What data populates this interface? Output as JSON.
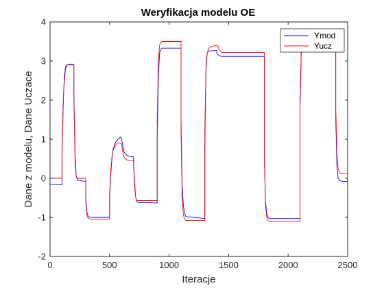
{
  "chart_data": {
    "type": "line",
    "title": "Weryfikacja modelu OE",
    "xlabel": "Iteracje",
    "ylabel": "Dane z modelu, Dane Uczace",
    "xlim": [
      0,
      2500
    ],
    "ylim": [
      -2,
      4
    ],
    "xticks": [
      "0",
      "500",
      "1000",
      "1500",
      "2000",
      "2500"
    ],
    "yticks": [
      "-2",
      "-1",
      "0",
      "1",
      "2",
      "3",
      "4"
    ],
    "grid": false,
    "legend_position": "top-right",
    "series": [
      {
        "name": "Ymod",
        "color": "#0000ff",
        "x": [
          0,
          100,
          100,
          110,
          120,
          130,
          140,
          200,
          200,
          210,
          220,
          230,
          300,
          300,
          310,
          320,
          330,
          340,
          500,
          500,
          510,
          520,
          530,
          550,
          570,
          590,
          600,
          610,
          620,
          640,
          660,
          680,
          700,
          710,
          720,
          730,
          740,
          900,
          900,
          910,
          920,
          930,
          940,
          1100,
          1100,
          1110,
          1120,
          1130,
          1140,
          1300,
          1300,
          1310,
          1320,
          1330,
          1340,
          1400,
          1400,
          1420,
          1440,
          1460,
          1500,
          1800,
          1800,
          1810,
          1820,
          1830,
          1840,
          2100,
          2100,
          2110,
          2120,
          2130,
          2140,
          2400,
          2400,
          2410,
          2420,
          2430,
          2440,
          2460,
          2500
        ],
        "y": [
          -0.15,
          -0.17,
          0.5,
          1.9,
          2.6,
          2.85,
          2.9,
          2.9,
          2.2,
          0.6,
          0.05,
          -0.05,
          -0.08,
          -0.5,
          -0.88,
          -0.97,
          -0.99,
          -1.0,
          -1.0,
          -0.5,
          0.1,
          0.5,
          0.75,
          0.92,
          1.0,
          1.05,
          1.02,
          0.85,
          0.68,
          0.6,
          0.57,
          0.55,
          0.55,
          -0.1,
          -0.5,
          -0.6,
          -0.62,
          -0.63,
          1.0,
          2.6,
          3.2,
          3.3,
          3.33,
          3.33,
          1.5,
          -0.2,
          -0.7,
          -0.9,
          -0.98,
          -1.03,
          0.8,
          2.8,
          3.2,
          3.25,
          3.26,
          3.27,
          3.2,
          3.14,
          3.12,
          3.12,
          3.12,
          3.12,
          0.5,
          -0.6,
          -0.9,
          -1.0,
          -1.03,
          -1.03,
          1.8,
          3.2,
          3.3,
          3.35,
          3.35,
          3.35,
          1.5,
          0.3,
          0.0,
          -0.05,
          -0.07,
          -0.08,
          -0.08
        ]
      },
      {
        "name": "Yucz",
        "color": "#ff0000",
        "x": [
          0,
          100,
          100,
          115,
          130,
          145,
          160,
          200,
          200,
          210,
          220,
          230,
          300,
          300,
          310,
          320,
          330,
          340,
          500,
          500,
          510,
          520,
          530,
          550,
          570,
          590,
          600,
          610,
          620,
          640,
          660,
          680,
          700,
          710,
          720,
          730,
          740,
          900,
          900,
          910,
          920,
          930,
          940,
          1100,
          1100,
          1110,
          1120,
          1130,
          1140,
          1300,
          1300,
          1310,
          1320,
          1330,
          1340,
          1370,
          1390,
          1400,
          1410,
          1420,
          1440,
          1500,
          1800,
          1800,
          1810,
          1820,
          1830,
          1840,
          2100,
          2100,
          2110,
          2120,
          2130,
          2140,
          2400,
          2400,
          2410,
          2420,
          2430,
          2440,
          2460,
          2500
        ],
        "y": [
          0.0,
          0.0,
          0.6,
          2.3,
          2.8,
          2.9,
          2.92,
          2.92,
          2.0,
          0.4,
          0.05,
          0.0,
          0.0,
          -0.6,
          -0.95,
          -1.02,
          -1.04,
          -1.05,
          -1.05,
          -0.4,
          0.2,
          0.55,
          0.72,
          0.85,
          0.9,
          0.9,
          0.88,
          0.7,
          0.55,
          0.48,
          0.46,
          0.45,
          0.45,
          -0.2,
          -0.5,
          -0.57,
          -0.57,
          -0.57,
          1.5,
          3.0,
          3.4,
          3.48,
          3.5,
          3.5,
          1.2,
          -0.5,
          -0.95,
          -1.05,
          -1.08,
          -1.08,
          1.2,
          2.9,
          3.2,
          3.3,
          3.35,
          3.38,
          3.4,
          3.4,
          3.38,
          3.3,
          3.22,
          3.22,
          3.22,
          0.5,
          -0.7,
          -1.0,
          -1.08,
          -1.1,
          -1.1,
          2.0,
          3.3,
          3.42,
          3.45,
          3.45,
          3.45,
          1.8,
          0.6,
          0.25,
          0.15,
          0.12,
          0.12,
          0.12
        ]
      }
    ]
  }
}
